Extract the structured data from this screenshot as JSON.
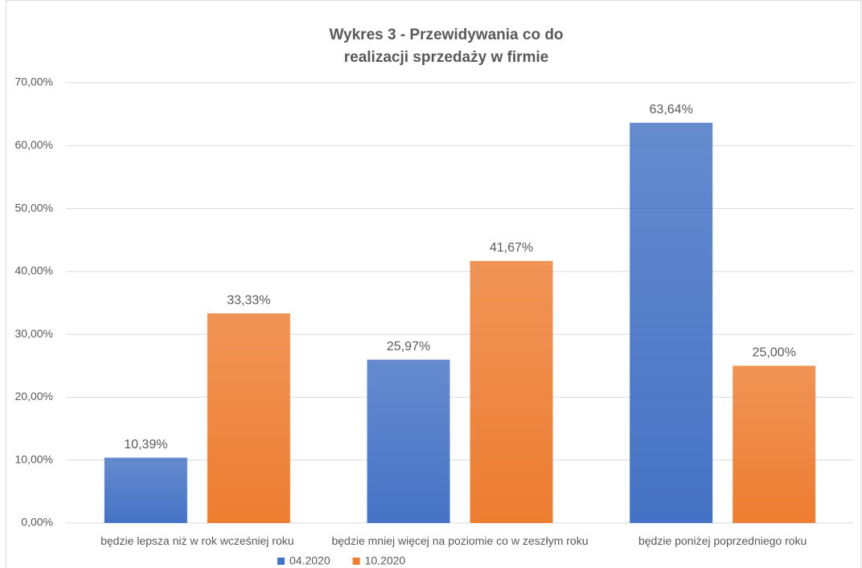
{
  "chart_data": {
    "type": "bar",
    "title": [
      "Wykres 3 - Przewidywania co do",
      "realizacji sprzedaży w firmie"
    ],
    "categories": [
      "będzie lepsza niż w rok wcześniej roku",
      "będzie mniej więcej na poziomie co w zeszłym roku",
      "będzie poniżej poprzedniego roku"
    ],
    "series": [
      {
        "name": "04.2020",
        "color": "#4472c4",
        "values": [
          10.39,
          25.97,
          63.64
        ],
        "value_labels": [
          "10,39%",
          "25,97%",
          "63,64%"
        ]
      },
      {
        "name": "10.2020",
        "color": "#ed7d31",
        "values": [
          33.33,
          41.67,
          25.0
        ],
        "value_labels": [
          "33,33%",
          "41,67%",
          "25,00%"
        ]
      }
    ],
    "ylim": [
      0,
      70
    ],
    "yticks": [
      {
        "value": 0,
        "label": "0,00%"
      },
      {
        "value": 10,
        "label": "10,00%"
      },
      {
        "value": 20,
        "label": "20,00%"
      },
      {
        "value": 30,
        "label": "30,00%"
      },
      {
        "value": 40,
        "label": "40,00%"
      },
      {
        "value": 50,
        "label": "50,00%"
      },
      {
        "value": 60,
        "label": "60,00%"
      },
      {
        "value": 70,
        "label": "70,00%"
      }
    ],
    "grid": true,
    "legend": "bottom"
  }
}
